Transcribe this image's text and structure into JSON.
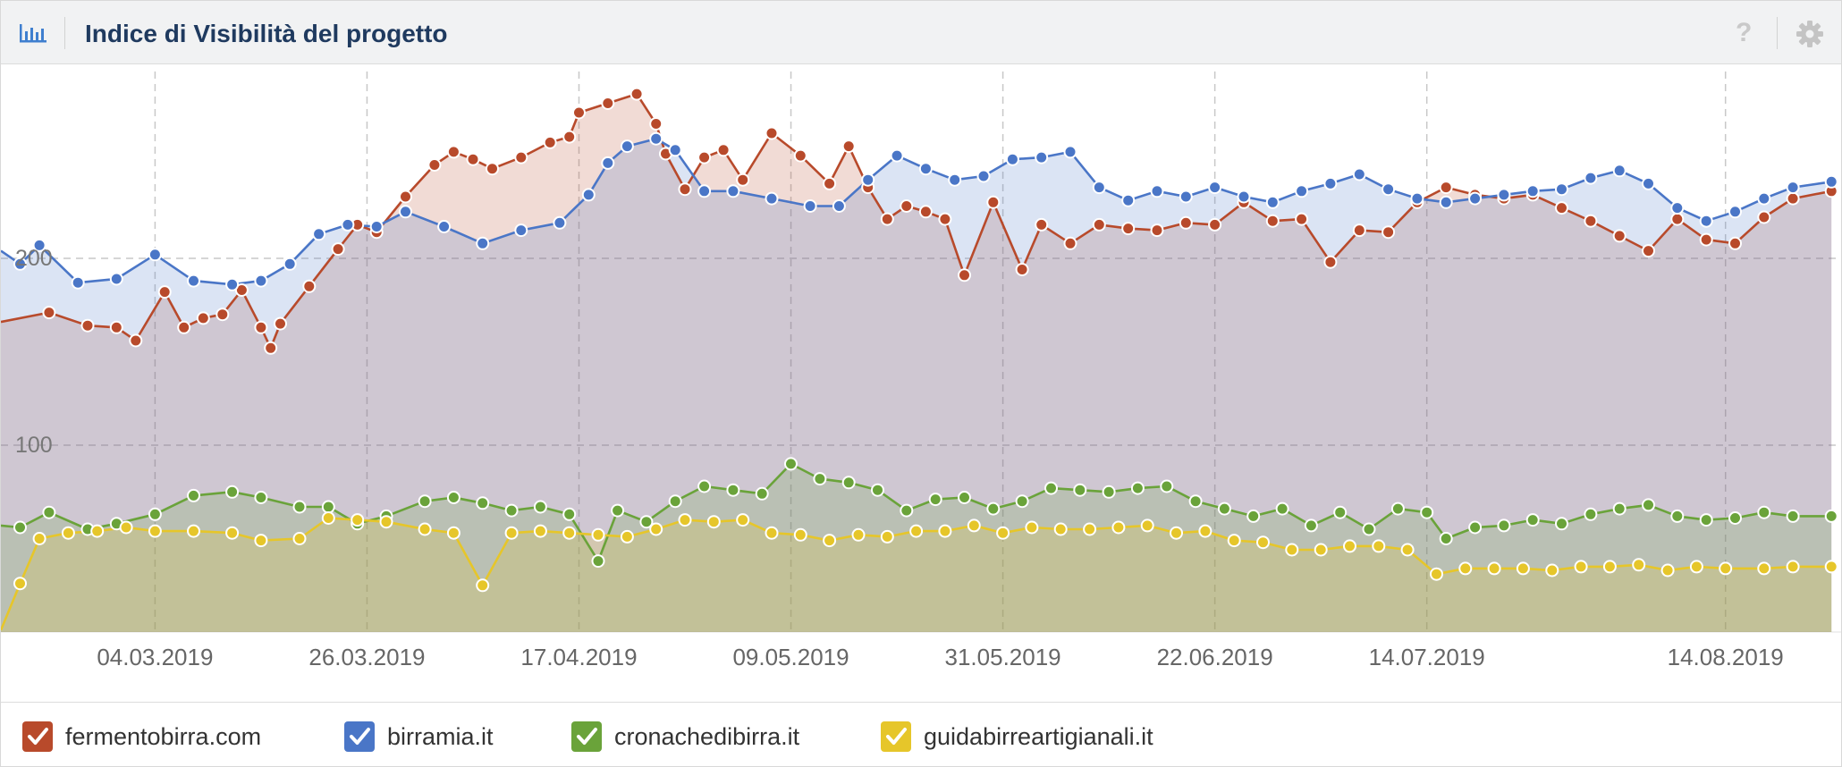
{
  "header": {
    "title": "Indice di Visibilità del progetto",
    "help_glyph": "?"
  },
  "colors": {
    "fermentobirra": "#b84a2b",
    "birramia": "#4a76c7",
    "cronachedibirra": "#6aa33a",
    "guidabirreartigianali": "#e6c62a",
    "grid": "#c8c8c8"
  },
  "icons": {
    "chart": "bar-chart-icon",
    "help": "question-mark-icon",
    "settings": "gear-icon",
    "legend_check": "checkmark-icon"
  },
  "legend": [
    {
      "key": "fermentobirra",
      "label": "fermentobirra.com"
    },
    {
      "key": "birramia",
      "label": "birramia.it"
    },
    {
      "key": "cronachedibirra",
      "label": "cronachedibirra.it"
    },
    {
      "key": "guidabirreartigianali",
      "label": "guidabirreartigianali.it"
    }
  ],
  "chart_data": {
    "type": "area",
    "legend_position": "bottom",
    "grid": true,
    "x_tick_labels": [
      "04.03.2019",
      "26.03.2019",
      "17.04.2019",
      "09.05.2019",
      "31.05.2019",
      "22.06.2019",
      "14.07.2019",
      "14.08.2019"
    ],
    "y_tick_labels": [
      "100",
      "200"
    ],
    "ylim": [
      0,
      300
    ],
    "xlim": [
      "2019-02-16",
      "2019-08-26"
    ],
    "series": [
      {
        "name": "fermentobirra.com",
        "key": "fermentobirra",
        "points": [
          [
            "2019-02-16",
            166
          ],
          [
            "2019-02-21",
            171
          ],
          [
            "2019-02-25",
            164
          ],
          [
            "2019-02-28",
            163
          ],
          [
            "2019-03-02",
            156
          ],
          [
            "2019-03-05",
            182
          ],
          [
            "2019-03-07",
            163
          ],
          [
            "2019-03-09",
            168
          ],
          [
            "2019-03-11",
            170
          ],
          [
            "2019-03-13",
            183
          ],
          [
            "2019-03-15",
            163
          ],
          [
            "2019-03-16",
            152
          ],
          [
            "2019-03-17",
            165
          ],
          [
            "2019-03-20",
            185
          ],
          [
            "2019-03-23",
            205
          ],
          [
            "2019-03-25",
            218
          ],
          [
            "2019-03-27",
            214
          ],
          [
            "2019-03-30",
            233
          ],
          [
            "2019-04-02",
            250
          ],
          [
            "2019-04-04",
            257
          ],
          [
            "2019-04-06",
            253
          ],
          [
            "2019-04-08",
            248
          ],
          [
            "2019-04-11",
            254
          ],
          [
            "2019-04-14",
            262
          ],
          [
            "2019-04-16",
            265
          ],
          [
            "2019-04-17",
            278
          ],
          [
            "2019-04-20",
            283
          ],
          [
            "2019-04-23",
            288
          ],
          [
            "2019-04-25",
            272
          ],
          [
            "2019-04-26",
            256
          ],
          [
            "2019-04-28",
            237
          ],
          [
            "2019-04-30",
            254
          ],
          [
            "2019-05-02",
            258
          ],
          [
            "2019-05-04",
            242
          ],
          [
            "2019-05-07",
            267
          ],
          [
            "2019-05-10",
            255
          ],
          [
            "2019-05-13",
            240
          ],
          [
            "2019-05-15",
            260
          ],
          [
            "2019-05-17",
            238
          ],
          [
            "2019-05-19",
            221
          ],
          [
            "2019-05-21",
            228
          ],
          [
            "2019-05-23",
            225
          ],
          [
            "2019-05-25",
            221
          ],
          [
            "2019-05-27",
            191
          ],
          [
            "2019-05-30",
            230
          ],
          [
            "2019-06-02",
            194
          ],
          [
            "2019-06-04",
            218
          ],
          [
            "2019-06-07",
            208
          ],
          [
            "2019-06-10",
            218
          ],
          [
            "2019-06-13",
            216
          ],
          [
            "2019-06-16",
            215
          ],
          [
            "2019-06-19",
            219
          ],
          [
            "2019-06-22",
            218
          ],
          [
            "2019-06-25",
            230
          ],
          [
            "2019-06-28",
            220
          ],
          [
            "2019-07-01",
            221
          ],
          [
            "2019-07-04",
            198
          ],
          [
            "2019-07-07",
            215
          ],
          [
            "2019-07-10",
            214
          ],
          [
            "2019-07-13",
            230
          ],
          [
            "2019-07-16",
            238
          ],
          [
            "2019-07-19",
            234
          ],
          [
            "2019-07-22",
            232
          ],
          [
            "2019-07-25",
            234
          ],
          [
            "2019-07-28",
            227
          ],
          [
            "2019-07-31",
            220
          ],
          [
            "2019-08-03",
            212
          ],
          [
            "2019-08-06",
            204
          ],
          [
            "2019-08-09",
            221
          ],
          [
            "2019-08-12",
            210
          ],
          [
            "2019-08-15",
            208
          ],
          [
            "2019-08-18",
            222
          ],
          [
            "2019-08-21",
            232
          ],
          [
            "2019-08-25",
            236
          ]
        ]
      },
      {
        "name": "birramia.it",
        "key": "birramia",
        "points": [
          [
            "2019-02-16",
            204
          ],
          [
            "2019-02-18",
            197
          ],
          [
            "2019-02-20",
            207
          ],
          [
            "2019-02-24",
            187
          ],
          [
            "2019-02-28",
            189
          ],
          [
            "2019-03-04",
            202
          ],
          [
            "2019-03-08",
            188
          ],
          [
            "2019-03-12",
            186
          ],
          [
            "2019-03-15",
            188
          ],
          [
            "2019-03-18",
            197
          ],
          [
            "2019-03-21",
            213
          ],
          [
            "2019-03-24",
            218
          ],
          [
            "2019-03-27",
            217
          ],
          [
            "2019-03-30",
            225
          ],
          [
            "2019-04-03",
            217
          ],
          [
            "2019-04-07",
            208
          ],
          [
            "2019-04-11",
            215
          ],
          [
            "2019-04-15",
            219
          ],
          [
            "2019-04-18",
            234
          ],
          [
            "2019-04-20",
            251
          ],
          [
            "2019-04-22",
            260
          ],
          [
            "2019-04-25",
            264
          ],
          [
            "2019-04-27",
            258
          ],
          [
            "2019-04-30",
            236
          ],
          [
            "2019-05-03",
            236
          ],
          [
            "2019-05-07",
            232
          ],
          [
            "2019-05-11",
            228
          ],
          [
            "2019-05-14",
            228
          ],
          [
            "2019-05-17",
            242
          ],
          [
            "2019-05-20",
            255
          ],
          [
            "2019-05-23",
            248
          ],
          [
            "2019-05-26",
            242
          ],
          [
            "2019-05-29",
            244
          ],
          [
            "2019-06-01",
            253
          ],
          [
            "2019-06-04",
            254
          ],
          [
            "2019-06-07",
            257
          ],
          [
            "2019-06-10",
            238
          ],
          [
            "2019-06-13",
            231
          ],
          [
            "2019-06-16",
            236
          ],
          [
            "2019-06-19",
            233
          ],
          [
            "2019-06-22",
            238
          ],
          [
            "2019-06-25",
            233
          ],
          [
            "2019-06-28",
            230
          ],
          [
            "2019-07-01",
            236
          ],
          [
            "2019-07-04",
            240
          ],
          [
            "2019-07-07",
            245
          ],
          [
            "2019-07-10",
            237
          ],
          [
            "2019-07-13",
            232
          ],
          [
            "2019-07-16",
            230
          ],
          [
            "2019-07-19",
            232
          ],
          [
            "2019-07-22",
            234
          ],
          [
            "2019-07-25",
            236
          ],
          [
            "2019-07-28",
            237
          ],
          [
            "2019-07-31",
            243
          ],
          [
            "2019-08-03",
            247
          ],
          [
            "2019-08-06",
            240
          ],
          [
            "2019-08-09",
            227
          ],
          [
            "2019-08-12",
            220
          ],
          [
            "2019-08-15",
            225
          ],
          [
            "2019-08-18",
            232
          ],
          [
            "2019-08-21",
            238
          ],
          [
            "2019-08-25",
            241
          ]
        ]
      },
      {
        "name": "cronachedibirra.it",
        "key": "cronachedibirra",
        "points": [
          [
            "2019-02-16",
            57
          ],
          [
            "2019-02-18",
            56
          ],
          [
            "2019-02-21",
            64
          ],
          [
            "2019-02-25",
            55
          ],
          [
            "2019-02-28",
            58
          ],
          [
            "2019-03-04",
            63
          ],
          [
            "2019-03-08",
            73
          ],
          [
            "2019-03-12",
            75
          ],
          [
            "2019-03-15",
            72
          ],
          [
            "2019-03-19",
            67
          ],
          [
            "2019-03-22",
            67
          ],
          [
            "2019-03-25",
            58
          ],
          [
            "2019-03-28",
            62
          ],
          [
            "2019-04-01",
            70
          ],
          [
            "2019-04-04",
            72
          ],
          [
            "2019-04-07",
            69
          ],
          [
            "2019-04-10",
            65
          ],
          [
            "2019-04-13",
            67
          ],
          [
            "2019-04-16",
            63
          ],
          [
            "2019-04-19",
            38
          ],
          [
            "2019-04-21",
            65
          ],
          [
            "2019-04-24",
            59
          ],
          [
            "2019-04-27",
            70
          ],
          [
            "2019-04-30",
            78
          ],
          [
            "2019-05-03",
            76
          ],
          [
            "2019-05-06",
            74
          ],
          [
            "2019-05-09",
            90
          ],
          [
            "2019-05-12",
            82
          ],
          [
            "2019-05-15",
            80
          ],
          [
            "2019-05-18",
            76
          ],
          [
            "2019-05-21",
            65
          ],
          [
            "2019-05-24",
            71
          ],
          [
            "2019-05-27",
            72
          ],
          [
            "2019-05-30",
            66
          ],
          [
            "2019-06-02",
            70
          ],
          [
            "2019-06-05",
            77
          ],
          [
            "2019-06-08",
            76
          ],
          [
            "2019-06-11",
            75
          ],
          [
            "2019-06-14",
            77
          ],
          [
            "2019-06-17",
            78
          ],
          [
            "2019-06-20",
            70
          ],
          [
            "2019-06-23",
            66
          ],
          [
            "2019-06-26",
            62
          ],
          [
            "2019-06-29",
            66
          ],
          [
            "2019-07-02",
            57
          ],
          [
            "2019-07-05",
            64
          ],
          [
            "2019-07-08",
            55
          ],
          [
            "2019-07-11",
            66
          ],
          [
            "2019-07-14",
            64
          ],
          [
            "2019-07-16",
            50
          ],
          [
            "2019-07-19",
            56
          ],
          [
            "2019-07-22",
            57
          ],
          [
            "2019-07-25",
            60
          ],
          [
            "2019-07-28",
            58
          ],
          [
            "2019-07-31",
            63
          ],
          [
            "2019-08-03",
            66
          ],
          [
            "2019-08-06",
            68
          ],
          [
            "2019-08-09",
            62
          ],
          [
            "2019-08-12",
            60
          ],
          [
            "2019-08-15",
            61
          ],
          [
            "2019-08-18",
            64
          ],
          [
            "2019-08-21",
            62
          ],
          [
            "2019-08-25",
            62
          ]
        ]
      },
      {
        "name": "guidabirreartigianali.it",
        "key": "guidabirreartigianali",
        "points": [
          [
            "2019-02-16",
            1
          ],
          [
            "2019-02-18",
            26
          ],
          [
            "2019-02-20",
            50
          ],
          [
            "2019-02-23",
            53
          ],
          [
            "2019-02-26",
            54
          ],
          [
            "2019-03-01",
            56
          ],
          [
            "2019-03-04",
            54
          ],
          [
            "2019-03-08",
            54
          ],
          [
            "2019-03-12",
            53
          ],
          [
            "2019-03-15",
            49
          ],
          [
            "2019-03-19",
            50
          ],
          [
            "2019-03-22",
            61
          ],
          [
            "2019-03-25",
            60
          ],
          [
            "2019-03-28",
            59
          ],
          [
            "2019-04-01",
            55
          ],
          [
            "2019-04-04",
            53
          ],
          [
            "2019-04-07",
            25
          ],
          [
            "2019-04-10",
            53
          ],
          [
            "2019-04-13",
            54
          ],
          [
            "2019-04-16",
            53
          ],
          [
            "2019-04-19",
            52
          ],
          [
            "2019-04-22",
            51
          ],
          [
            "2019-04-25",
            55
          ],
          [
            "2019-04-28",
            60
          ],
          [
            "2019-05-01",
            59
          ],
          [
            "2019-05-04",
            60
          ],
          [
            "2019-05-07",
            53
          ],
          [
            "2019-05-10",
            52
          ],
          [
            "2019-05-13",
            49
          ],
          [
            "2019-05-16",
            52
          ],
          [
            "2019-05-19",
            51
          ],
          [
            "2019-05-22",
            54
          ],
          [
            "2019-05-25",
            54
          ],
          [
            "2019-05-28",
            57
          ],
          [
            "2019-05-31",
            53
          ],
          [
            "2019-06-03",
            56
          ],
          [
            "2019-06-06",
            55
          ],
          [
            "2019-06-09",
            55
          ],
          [
            "2019-06-12",
            56
          ],
          [
            "2019-06-15",
            57
          ],
          [
            "2019-06-18",
            53
          ],
          [
            "2019-06-21",
            54
          ],
          [
            "2019-06-24",
            49
          ],
          [
            "2019-06-27",
            48
          ],
          [
            "2019-06-30",
            44
          ],
          [
            "2019-07-03",
            44
          ],
          [
            "2019-07-06",
            46
          ],
          [
            "2019-07-09",
            46
          ],
          [
            "2019-07-12",
            44
          ],
          [
            "2019-07-15",
            31
          ],
          [
            "2019-07-18",
            34
          ],
          [
            "2019-07-21",
            34
          ],
          [
            "2019-07-24",
            34
          ],
          [
            "2019-07-27",
            33
          ],
          [
            "2019-07-30",
            35
          ],
          [
            "2019-08-02",
            35
          ],
          [
            "2019-08-05",
            36
          ],
          [
            "2019-08-08",
            33
          ],
          [
            "2019-08-11",
            35
          ],
          [
            "2019-08-14",
            34
          ],
          [
            "2019-08-18",
            34
          ],
          [
            "2019-08-21",
            35
          ],
          [
            "2019-08-25",
            35
          ]
        ]
      }
    ]
  }
}
